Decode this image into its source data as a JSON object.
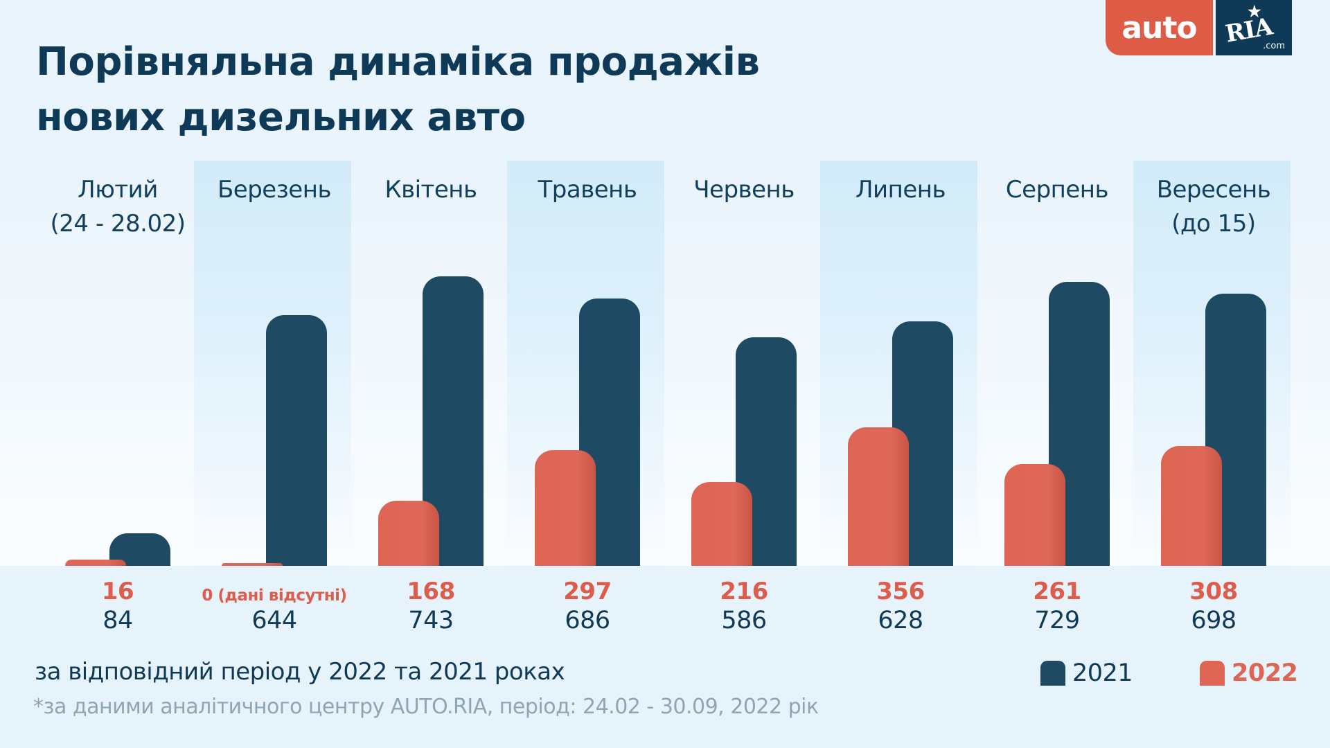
{
  "title": {
    "line1": "Порівняльна динаміка продажів",
    "line2": "нових дизельних авто"
  },
  "logo": {
    "auto": "auto",
    "ria": "RIA",
    "com": ".com",
    "star": "★"
  },
  "colors": {
    "series_2021": "#1F4A64",
    "series_2022": "#DE6553",
    "title": "#0E3A57",
    "band": "#D3ECFA",
    "background": "#EAF4FC"
  },
  "subtitle": "за відповідний період у 2022 та 2021 роках",
  "footnote": "*за даними аналітичного центру AUTO.RIA, період: 24.02 - 30.09, 2022 рік",
  "legend": [
    {
      "label": "2021",
      "color": "#1F4A64"
    },
    {
      "label": "2022",
      "color": "#DE6553"
    }
  ],
  "chart_data": {
    "type": "bar",
    "title": "Порівняльна динаміка продажів нових дизельних авто",
    "subtitle": "за відповідний період у 2022 та 2021 роках",
    "categories": [
      [
        "Лютий",
        "(24 - 28.02)"
      ],
      [
        "Березень"
      ],
      [
        "Квітень"
      ],
      [
        "Травень"
      ],
      [
        "Червень"
      ],
      [
        "Липень"
      ],
      [
        "Серпень"
      ],
      [
        "Вересень",
        "(до 15)"
      ]
    ],
    "highlighted_categories": [
      1,
      3,
      5,
      7
    ],
    "series": [
      {
        "name": "2022",
        "values": [
          16,
          0,
          168,
          297,
          216,
          356,
          261,
          308
        ],
        "labels": [
          "16",
          "0 (дані відсутні)",
          "168",
          "297",
          "216",
          "356",
          "261",
          "308"
        ]
      },
      {
        "name": "2021",
        "values": [
          84,
          644,
          743,
          686,
          586,
          628,
          729,
          698
        ],
        "labels": [
          "84",
          "644",
          "743",
          "686",
          "586",
          "628",
          "729",
          "698"
        ]
      }
    ],
    "xlabel": "",
    "ylabel": "",
    "ylim": [
      0,
      800
    ],
    "grid": false,
    "legend_position": "bottom-right"
  }
}
